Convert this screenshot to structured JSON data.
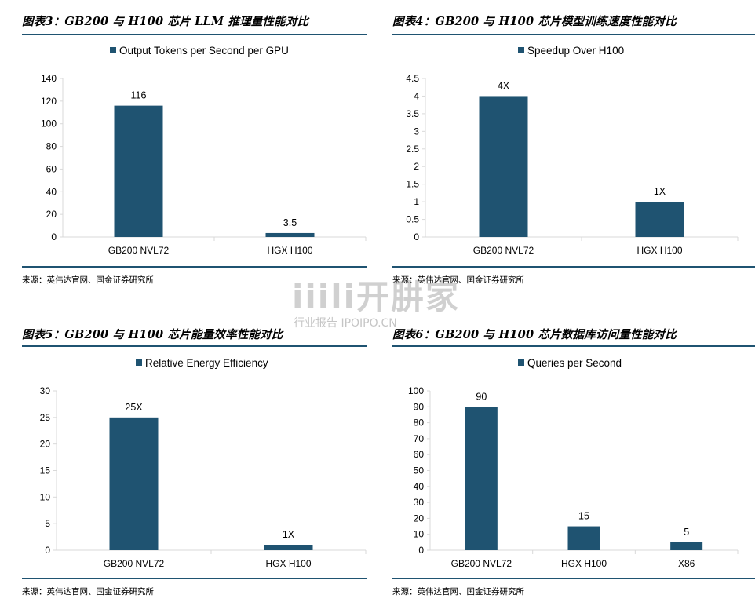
{
  "panels": [
    {
      "title": "图表3：GB200 与 H100 芯片 LLM 推理量性能对比",
      "source": "来源：英伟达官网、国金证券研究所"
    },
    {
      "title": "图表4：GB200 与 H100 芯片模型训练速度性能对比",
      "source": "来源：英伟达官网、国金证券研究所"
    },
    {
      "title": "图表5：GB200 与 H100 芯片能量效率性能对比",
      "source": "来源：英伟达官网、国金证券研究所"
    },
    {
      "title": "图表6：GB200 与 H100 芯片数据库访问量性能对比",
      "source": "来源：英伟达官网、国金证券研究所"
    }
  ],
  "watermark": {
    "brand": "iiili开肼家",
    "subtitle": "行业报告 IPOIPO.CN"
  },
  "colors": {
    "bar": "#1f5371",
    "rule": "#1f5371",
    "axis": "#d9d9d9"
  },
  "chart_data": [
    {
      "type": "bar",
      "categories": [
        "GB200 NVL72",
        "HGX H100"
      ],
      "series": [
        {
          "name": "Output Tokens per Second per GPU",
          "values": [
            116,
            3.5
          ]
        }
      ],
      "data_labels": [
        "116",
        "3.5"
      ],
      "yticks": [
        "0",
        "20",
        "40",
        "60",
        "80",
        "100",
        "120",
        "140"
      ],
      "ylim": [
        0,
        140
      ],
      "legend": "top-center",
      "grid": false
    },
    {
      "type": "bar",
      "categories": [
        "GB200 NVL72",
        "HGX H100"
      ],
      "series": [
        {
          "name": "Speedup Over H100",
          "values": [
            4,
            1
          ]
        }
      ],
      "data_labels": [
        "4X",
        "1X"
      ],
      "yticks": [
        "0",
        "0.5",
        "1",
        "1.5",
        "2",
        "2.5",
        "3",
        "3.5",
        "4",
        "4.5"
      ],
      "ylim": [
        0,
        4.5
      ],
      "legend": "top-center",
      "grid": false
    },
    {
      "type": "bar",
      "categories": [
        "GB200 NVL72",
        "HGX H100"
      ],
      "series": [
        {
          "name": "Relative Energy Efficiency",
          "values": [
            25,
            1
          ]
        }
      ],
      "data_labels": [
        "25X",
        "1X"
      ],
      "yticks": [
        "0",
        "5",
        "10",
        "15",
        "20",
        "25",
        "30"
      ],
      "ylim": [
        0,
        30
      ],
      "legend": "top-center",
      "grid": false
    },
    {
      "type": "bar",
      "categories": [
        "GB200 NVL72",
        "HGX H100",
        "X86"
      ],
      "series": [
        {
          "name": "Queries per Second",
          "values": [
            90,
            15,
            5
          ]
        }
      ],
      "data_labels": [
        "90",
        "15",
        "5"
      ],
      "yticks": [
        "0",
        "10",
        "20",
        "30",
        "40",
        "50",
        "60",
        "70",
        "80",
        "90",
        "100"
      ],
      "ylim": [
        0,
        100
      ],
      "legend": "top-center",
      "grid": false
    }
  ]
}
